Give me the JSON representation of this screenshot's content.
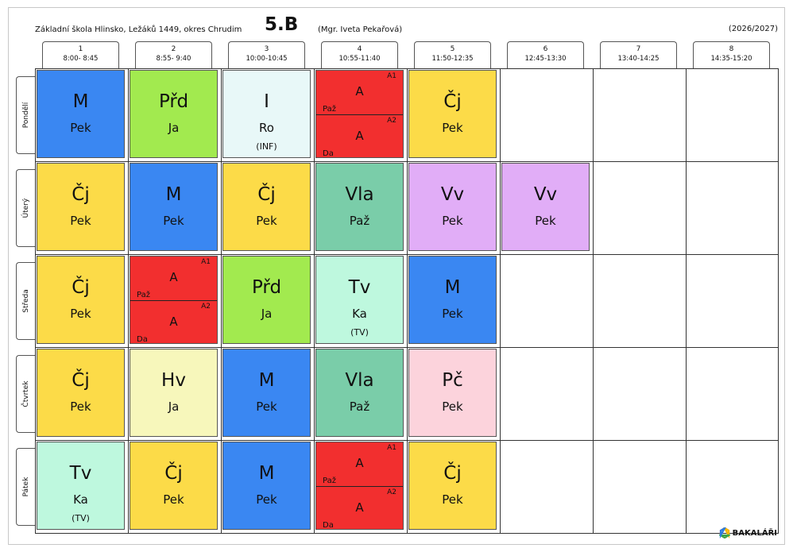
{
  "header": {
    "school": "Základní škola Hlinsko, Ležáků 1449, okres Chrudim",
    "class": "5.B",
    "teacher": "(Mgr. Iveta Pekařová)",
    "year": "(2026/2027)"
  },
  "periods": [
    {
      "num": "1",
      "time": "8:00- 8:45"
    },
    {
      "num": "2",
      "time": "8:55- 9:40"
    },
    {
      "num": "3",
      "time": "10:00-10:45"
    },
    {
      "num": "4",
      "time": "10:55-11:40"
    },
    {
      "num": "5",
      "time": "11:50-12:35"
    },
    {
      "num": "6",
      "time": "12:45-13:30"
    },
    {
      "num": "7",
      "time": "13:40-14:25"
    },
    {
      "num": "8",
      "time": "14:35-15:20"
    }
  ],
  "days": [
    "Pondělí",
    "Úterý",
    "Středa",
    "Čtvrtek",
    "Pátek"
  ],
  "colors": {
    "M": "#3a87f2",
    "Přd": "#a2ea4f",
    "I": "#e8f8f8",
    "A": "#f22f2f",
    "Čj": "#fcdb48",
    "Vla": "#7acda9",
    "Vv": "#e1adf7",
    "Tv": "#bef8de",
    "Hv": "#f7f7bb",
    "Pč": "#fcd3dc"
  },
  "lessons": [
    {
      "day": 0,
      "period": 0,
      "subject": "M",
      "teacher": "Pek"
    },
    {
      "day": 0,
      "period": 1,
      "subject": "Přd",
      "teacher": "Ja"
    },
    {
      "day": 0,
      "period": 2,
      "subject": "I",
      "teacher": "Ro",
      "room": "(INF)"
    },
    {
      "day": 0,
      "period": 3,
      "subject": "A",
      "groups": [
        {
          "group": "A1",
          "subject": "A",
          "teacher": "Paž"
        },
        {
          "group": "A2",
          "subject": "A",
          "teacher": "Da"
        }
      ]
    },
    {
      "day": 0,
      "period": 4,
      "subject": "Čj",
      "teacher": "Pek"
    },
    {
      "day": 1,
      "period": 0,
      "subject": "Čj",
      "teacher": "Pek"
    },
    {
      "day": 1,
      "period": 1,
      "subject": "M",
      "teacher": "Pek"
    },
    {
      "day": 1,
      "period": 2,
      "subject": "Čj",
      "teacher": "Pek"
    },
    {
      "day": 1,
      "period": 3,
      "subject": "Vla",
      "teacher": "Paž"
    },
    {
      "day": 1,
      "period": 4,
      "subject": "Vv",
      "teacher": "Pek"
    },
    {
      "day": 1,
      "period": 5,
      "subject": "Vv",
      "teacher": "Pek"
    },
    {
      "day": 2,
      "period": 0,
      "subject": "Čj",
      "teacher": "Pek"
    },
    {
      "day": 2,
      "period": 1,
      "subject": "A",
      "groups": [
        {
          "group": "A1",
          "subject": "A",
          "teacher": "Paž"
        },
        {
          "group": "A2",
          "subject": "A",
          "teacher": "Da"
        }
      ]
    },
    {
      "day": 2,
      "period": 2,
      "subject": "Přd",
      "teacher": "Ja"
    },
    {
      "day": 2,
      "period": 3,
      "subject": "Tv",
      "teacher": "Ka",
      "room": "(TV)"
    },
    {
      "day": 2,
      "period": 4,
      "subject": "M",
      "teacher": "Pek"
    },
    {
      "day": 3,
      "period": 0,
      "subject": "Čj",
      "teacher": "Pek"
    },
    {
      "day": 3,
      "period": 1,
      "subject": "Hv",
      "teacher": "Ja"
    },
    {
      "day": 3,
      "period": 2,
      "subject": "M",
      "teacher": "Pek"
    },
    {
      "day": 3,
      "period": 3,
      "subject": "Vla",
      "teacher": "Paž"
    },
    {
      "day": 3,
      "period": 4,
      "subject": "Pč",
      "teacher": "Pek"
    },
    {
      "day": 4,
      "period": 0,
      "subject": "Tv",
      "teacher": "Ka",
      "room": "(TV)"
    },
    {
      "day": 4,
      "period": 1,
      "subject": "Čj",
      "teacher": "Pek"
    },
    {
      "day": 4,
      "period": 2,
      "subject": "M",
      "teacher": "Pek"
    },
    {
      "day": 4,
      "period": 3,
      "subject": "A",
      "groups": [
        {
          "group": "A1",
          "subject": "A",
          "teacher": "Paž"
        },
        {
          "group": "A2",
          "subject": "A",
          "teacher": "Da"
        }
      ]
    },
    {
      "day": 4,
      "period": 4,
      "subject": "Čj",
      "teacher": "Pek"
    }
  ],
  "logo": {
    "text": "BAKALÁŘI",
    "icon": "bakalari-logo-icon"
  }
}
